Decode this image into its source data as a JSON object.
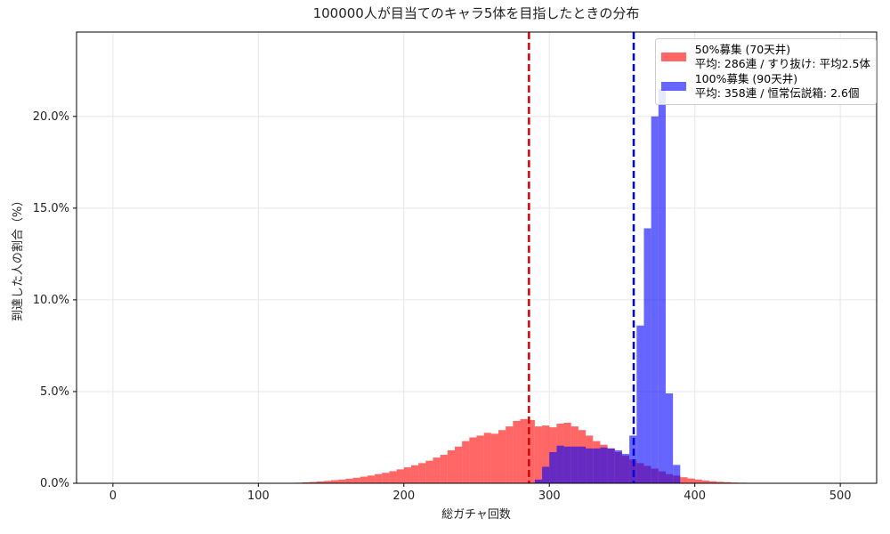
{
  "chart_data": {
    "type": "histogram",
    "title": "100000人が目当てのキャラ5体を目指したときの分布",
    "xlabel": "総ガチャ回数",
    "ylabel": "到達した人の割合（%）",
    "xlim": [
      -25,
      525
    ],
    "xticks": [
      0,
      100,
      200,
      300,
      400,
      500
    ],
    "ylim": [
      0,
      24.6
    ],
    "yticks": [
      {
        "value": 0,
        "label": "0.0%"
      },
      {
        "value": 5,
        "label": "5.0%"
      },
      {
        "value": 10,
        "label": "10.0%"
      },
      {
        "value": 15,
        "label": "15.0%"
      },
      {
        "value": 20,
        "label": "20.0%"
      }
    ],
    "grid": true,
    "legend": "upper right",
    "opacity": 0.6,
    "series": [
      {
        "name": "50%募集 (70天井)\n平均: 286連 / すり抜け: 平均2.5体",
        "color": "#ff0000",
        "bins": [
          120,
          125,
          130,
          135,
          140,
          145,
          150,
          155,
          160,
          165,
          170,
          175,
          180,
          185,
          190,
          195,
          200,
          205,
          210,
          215,
          220,
          225,
          230,
          235,
          240,
          245,
          250,
          255,
          260,
          265,
          270,
          275,
          280,
          285,
          290,
          295,
          300,
          305,
          310,
          315,
          320,
          325,
          330,
          335,
          340,
          345,
          350,
          355,
          360,
          365,
          370,
          375,
          380,
          385,
          390,
          395,
          400,
          405,
          410,
          415,
          420,
          425,
          430,
          435,
          440,
          445,
          450,
          455
        ],
        "values": [
          0.02,
          0.03,
          0.05,
          0.07,
          0.1,
          0.13,
          0.17,
          0.2,
          0.25,
          0.3,
          0.36,
          0.42,
          0.5,
          0.57,
          0.66,
          0.76,
          0.87,
          0.98,
          1.1,
          1.23,
          1.4,
          1.55,
          1.8,
          2.0,
          2.3,
          2.5,
          2.6,
          2.75,
          2.7,
          2.9,
          3.1,
          3.4,
          3.5,
          3.45,
          3.1,
          3.15,
          3.05,
          3.25,
          3.3,
          3.1,
          2.9,
          2.6,
          2.3,
          2.1,
          1.9,
          1.7,
          1.5,
          1.3,
          1.1,
          0.95,
          0.8,
          0.65,
          0.5,
          0.42,
          0.33,
          0.26,
          0.2,
          0.15,
          0.11,
          0.08,
          0.06,
          0.04,
          0.03,
          0.02,
          0.015,
          0.01,
          0.005
        ]
      },
      {
        "name": "100%募集 (90天井)\n平均: 358連 / 恒常伝説箱: 2.6個",
        "color": "#0000ff",
        "bins": [
          290,
          295,
          300,
          305,
          310,
          315,
          320,
          325,
          330,
          335,
          340,
          345,
          350,
          355,
          360,
          365,
          370,
          375,
          380,
          385,
          390
        ],
        "values": [
          0.2,
          0.9,
          1.7,
          2.05,
          2.0,
          2.0,
          2.0,
          1.9,
          1.9,
          1.95,
          1.9,
          1.8,
          1.6,
          2.6,
          8.6,
          13.9,
          20.0,
          21.5,
          4.9,
          1.0
        ]
      }
    ],
    "mean_lines": [
      {
        "value": 286,
        "color": "#dd0000"
      },
      {
        "value": 358,
        "color": "#0000dd"
      }
    ]
  }
}
